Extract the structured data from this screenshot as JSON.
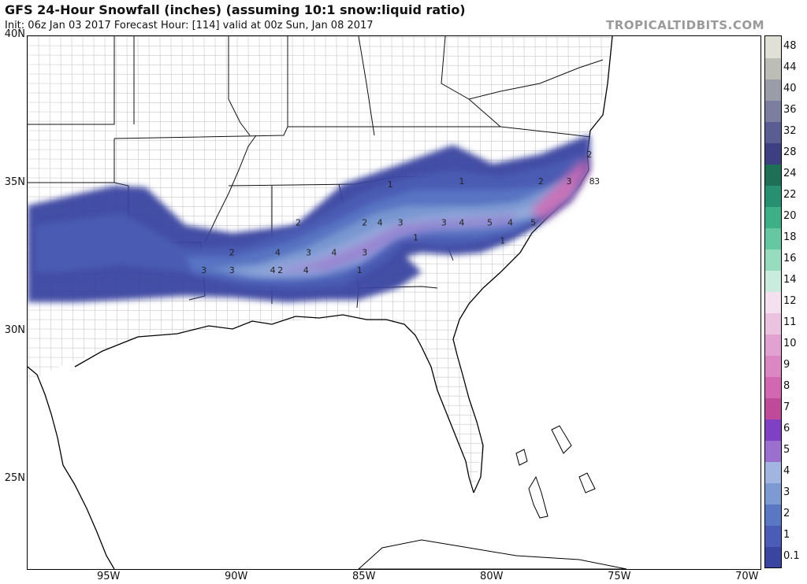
{
  "header": {
    "title": "GFS 24-Hour Snowfall (inches) (assuming 10:1 snow:liquid ratio)",
    "subtitle": "Init: 06z Jan 03 2017   Forecast Hour: [114]   valid at 00z Sun, Jan 08 2017",
    "brand": "TROPICALTIDBITS.COM"
  },
  "axes": {
    "lat_labels": [
      {
        "text": "40N",
        "lat": 40
      },
      {
        "text": "35N",
        "lat": 35
      },
      {
        "text": "30N",
        "lat": 30
      },
      {
        "text": "25N",
        "lat": 25
      }
    ],
    "lon_labels": [
      {
        "text": "95W",
        "lon": -95
      },
      {
        "text": "90W",
        "lon": -90
      },
      {
        "text": "85W",
        "lon": -85
      },
      {
        "text": "80W",
        "lon": -80
      },
      {
        "text": "75W",
        "lon": -75
      },
      {
        "text": "70W",
        "lon": -70
      }
    ]
  },
  "colorbar": {
    "ticks": [
      "0.1",
      "1",
      "2",
      "3",
      "4",
      "5",
      "6",
      "7",
      "8",
      "9",
      "10",
      "11",
      "12",
      "14",
      "16",
      "18",
      "20",
      "22",
      "24",
      "28",
      "32",
      "36",
      "40",
      "44",
      "48"
    ],
    "colors": [
      "#3a45a0",
      "#4a5cb5",
      "#5a77c4",
      "#7d9bd2",
      "#a1b5e0",
      "#9a6fcd",
      "#8040c4",
      "#c04a9a",
      "#d267b2",
      "#db87c3",
      "#e2a2d1",
      "#ebc2e0",
      "#f4e0ee",
      "#c9ecde",
      "#98dcc0",
      "#66c8a3",
      "#3eb088",
      "#279070",
      "#1f6e56",
      "#3c3f82",
      "#5a5d92",
      "#7b7e9f",
      "#9a9ca8",
      "#bcbdb6",
      "#e0e0d6"
    ]
  },
  "snow_band": {
    "contour_labels": [
      {
        "text": "1",
        "lon": -84.0,
        "lat": 34.9
      },
      {
        "text": "1",
        "lon": -83.0,
        "lat": 33.1
      },
      {
        "text": "1",
        "lon": -81.2,
        "lat": 35.0
      },
      {
        "text": "1",
        "lon": -79.6,
        "lat": 33.0
      },
      {
        "text": "1",
        "lon": -85.2,
        "lat": 32.0
      },
      {
        "text": "2",
        "lon": -78.1,
        "lat": 35.0
      },
      {
        "text": "2",
        "lon": -85.0,
        "lat": 33.6
      },
      {
        "text": "2",
        "lon": -87.6,
        "lat": 33.6
      },
      {
        "text": "2",
        "lon": -90.2,
        "lat": 32.6
      },
      {
        "text": "2",
        "lon": -88.3,
        "lat": 32.0
      },
      {
        "text": "2",
        "lon": -76.2,
        "lat": 35.9
      },
      {
        "text": "3",
        "lon": -77.0,
        "lat": 35.0
      },
      {
        "text": "3",
        "lon": -75.9,
        "lat": 35.0
      },
      {
        "text": "3",
        "lon": -83.6,
        "lat": 33.6
      },
      {
        "text": "3",
        "lon": -81.9,
        "lat": 33.6
      },
      {
        "text": "3",
        "lon": -87.2,
        "lat": 32.6
      },
      {
        "text": "3",
        "lon": -85.0,
        "lat": 32.6
      },
      {
        "text": "3",
        "lon": -91.3,
        "lat": 32.0
      },
      {
        "text": "3",
        "lon": -90.2,
        "lat": 32.0
      },
      {
        "text": "4",
        "lon": -84.4,
        "lat": 33.6
      },
      {
        "text": "4",
        "lon": -81.2,
        "lat": 33.6
      },
      {
        "text": "4",
        "lon": -79.3,
        "lat": 33.6
      },
      {
        "text": "4",
        "lon": -88.4,
        "lat": 32.6
      },
      {
        "text": "4",
        "lon": -86.2,
        "lat": 32.6
      },
      {
        "text": "4",
        "lon": -88.6,
        "lat": 32.0
      },
      {
        "text": "4",
        "lon": -87.3,
        "lat": 32.0
      },
      {
        "text": "5",
        "lon": -80.1,
        "lat": 33.6
      },
      {
        "text": "5",
        "lon": -78.4,
        "lat": 33.6
      },
      {
        "text": "8",
        "lon": -76.1,
        "lat": 35.0
      }
    ]
  }
}
